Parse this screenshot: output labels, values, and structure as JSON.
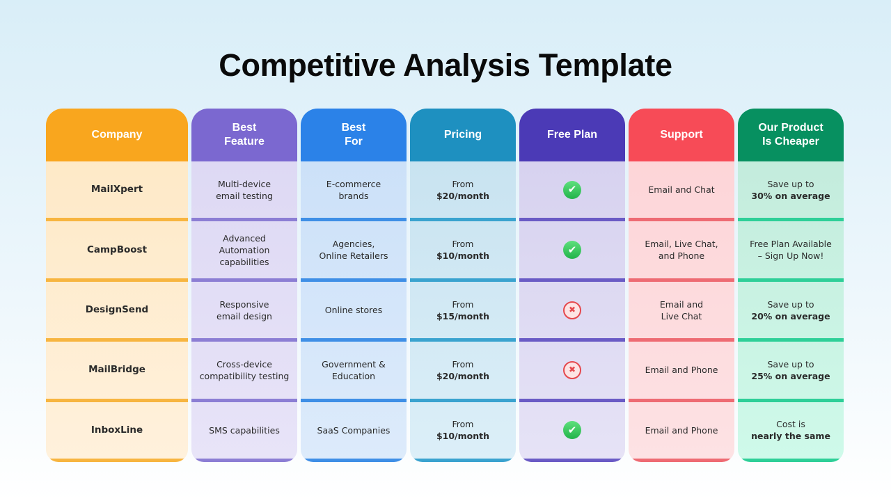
{
  "title": "Competitive Analysis Template",
  "columns": [
    {
      "header": "Company",
      "color": "#F9A61E",
      "body": "#FEE8C4",
      "body_bottom": "#FFF1DC",
      "bar": "#F7B540"
    },
    {
      "header": "Best\nFeature",
      "color": "#7B68D0",
      "body": "#DCD7F3",
      "body_bottom": "#E8E4F8",
      "bar": "#8C7ED4"
    },
    {
      "header": "Best\nFor",
      "color": "#2B82E8",
      "body": "#C9DFF8",
      "body_bottom": "#DDEBFB",
      "bar": "#3F8FE6"
    },
    {
      "header": "Pricing",
      "color": "#1E90C0",
      "body": "#C5E1EF",
      "body_bottom": "#DCEFF8",
      "bar": "#3AA3CF"
    },
    {
      "header": "Free Plan",
      "color": "#4B3AB6",
      "body": "#D4CFEE",
      "body_bottom": "#E6E3F6",
      "bar": "#6A5BC5"
    },
    {
      "header": "Support",
      "color": "#F74B57",
      "body": "#FDD3D6",
      "body_bottom": "#FDE2E4",
      "bar": "#EE6B73"
    },
    {
      "header": "Our Product\nIs Cheaper",
      "color": "#079060",
      "body": "#C2E9DA",
      "body_bottom": "#CFFAEA",
      "bar": "#2ECF98"
    }
  ],
  "rows": [
    {
      "company": "MailXpert",
      "feature": "Multi-device\nemail testing",
      "best_for": "E-commerce\nbrands",
      "pricing": {
        "text": "From",
        "bold": "$20/month"
      },
      "free_plan": "check",
      "support": "Email and Chat",
      "cheaper": {
        "text": "Save up to",
        "bold": "30% on average"
      }
    },
    {
      "company": "CampBoost",
      "feature": "Advanced\nAutomation\ncapabilities",
      "best_for": "Agencies,\nOnline Retailers",
      "pricing": {
        "text": "From",
        "bold": "$10/month"
      },
      "free_plan": "check",
      "support": "Email, Live Chat,\nand Phone",
      "cheaper": {
        "text": "Free Plan Available\n– Sign Up Now!",
        "bold": ""
      }
    },
    {
      "company": "DesignSend",
      "feature": "Responsive\nemail design",
      "best_for": "Online stores",
      "pricing": {
        "text": "From",
        "bold": "$15/month"
      },
      "free_plan": "cross",
      "support": "Email and\nLive Chat",
      "cheaper": {
        "text": "Save up to",
        "bold": "20% on average"
      }
    },
    {
      "company": "MailBridge",
      "feature": "Cross-device\ncompatibility testing",
      "best_for": "Government &\nEducation",
      "pricing": {
        "text": "From",
        "bold": "$20/month"
      },
      "free_plan": "cross",
      "support": "Email and Phone",
      "cheaper": {
        "text": "Save up to",
        "bold": "25% on average"
      }
    },
    {
      "company": "InboxLine",
      "feature": "SMS capabilities",
      "best_for": "SaaS Companies",
      "pricing": {
        "text": "From",
        "bold": "$10/month"
      },
      "free_plan": "check",
      "support": "Email and Phone",
      "cheaper": {
        "text": "Cost is",
        "bold": "nearly the same"
      }
    }
  ]
}
